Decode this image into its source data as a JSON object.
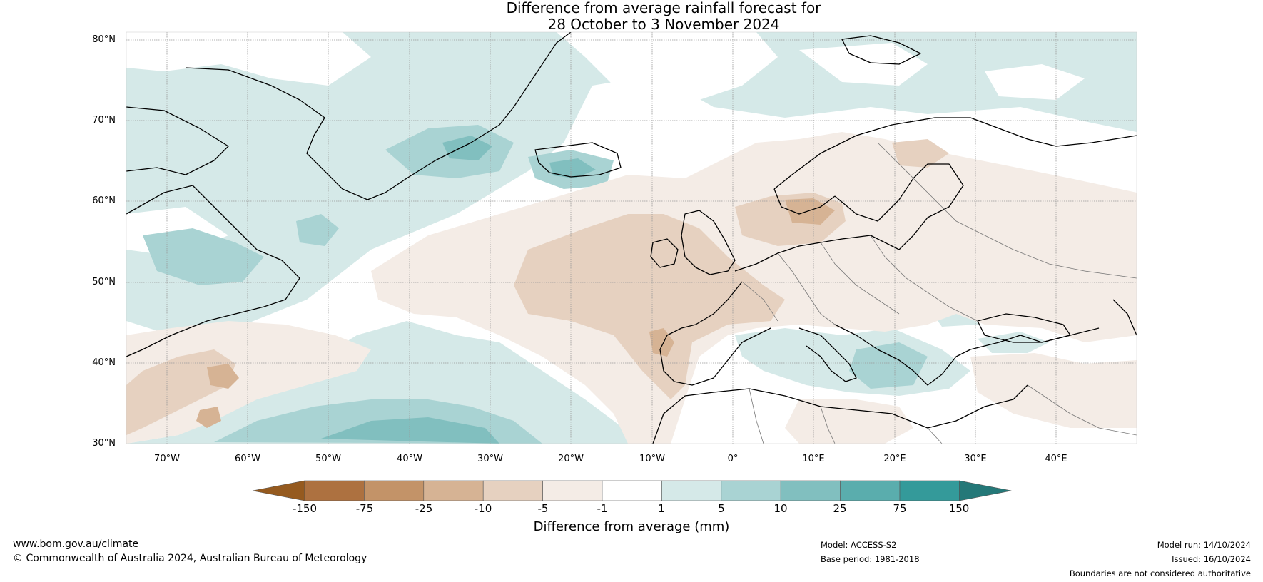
{
  "title": {
    "line1": "Difference from average rainfall forecast for",
    "line2": "28 October to 3 November 2024"
  },
  "map": {
    "latitude_labels": [
      "80°N",
      "70°N",
      "60°N",
      "50°N",
      "40°N",
      "30°N"
    ],
    "longitude_labels": [
      "70°W",
      "60°W",
      "50°W",
      "40°W",
      "30°W",
      "20°W",
      "10°W",
      "0°",
      "10°E",
      "20°E",
      "30°E",
      "40°E"
    ],
    "extent": {
      "lon_min": -75,
      "lon_max": 50,
      "lat_min": 30,
      "lat_max": 81
    }
  },
  "colorbar": {
    "label": "Difference from average (mm)",
    "ticks": [
      "-150",
      "-75",
      "-25",
      "-10",
      "-5",
      "-1",
      "1",
      "5",
      "10",
      "25",
      "75",
      "150"
    ],
    "colors": [
      "#955a1f",
      "#ad7140",
      "#c39368",
      "#d6b394",
      "#e6d1c0",
      "#f4ece6",
      "#ffffff",
      "#d5e9e8",
      "#a9d3d3",
      "#81bfbf",
      "#5aadad",
      "#349a9a",
      "#247878"
    ]
  },
  "footer": {
    "website": "www.bom.gov.au/climate",
    "copyright": "© Commonwealth of Australia 2024, Australian Bureau of Meteorology",
    "model": "Model: ACCESS-S2",
    "base_period": "Base period: 1981-2018",
    "model_run": "Model run: 14/10/2024",
    "issued": "Issued: 16/10/2024",
    "disclaimer": "Boundaries are not considered authoritative"
  }
}
